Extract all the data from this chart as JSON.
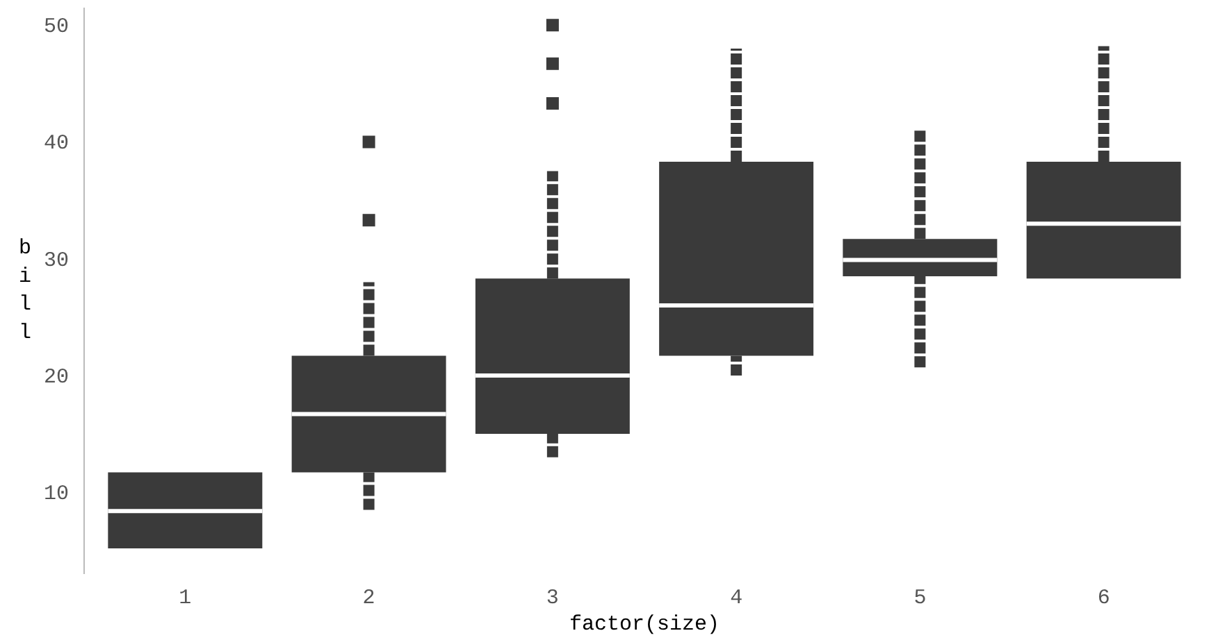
{
  "chart_data": {
    "type": "box",
    "xlabel": "factor(size)",
    "ylabel": "bill",
    "categories": [
      "1",
      "2",
      "3",
      "4",
      "5",
      "6"
    ],
    "boxes": [
      {
        "low": 5.2,
        "q1": 5.2,
        "median": 8.4,
        "q3": 11.7,
        "high": 11.7
      },
      {
        "low": 8.5,
        "q1": 11.7,
        "median": 16.7,
        "q3": 21.7,
        "high": 28,
        "outliers": [
          33.3,
          40
        ]
      },
      {
        "low": 13,
        "q1": 15,
        "median": 20,
        "q3": 28.3,
        "high": 37.5,
        "outliers": [
          43.3,
          46.7,
          50
        ]
      },
      {
        "low": 20,
        "q1": 21.7,
        "median": 26,
        "q3": 38.3,
        "high": 48
      },
      {
        "low": 20.7,
        "q1": 28.5,
        "median": 29.9,
        "q3": 31.7,
        "high": 41.2
      },
      {
        "low": 28.3,
        "q1": 28.3,
        "median": 33,
        "q3": 38.3,
        "high": 48.2
      }
    ],
    "color": "#3a3a3a",
    "ylim": [
      3,
      51.5
    ],
    "yticks": [
      10,
      20,
      30,
      40,
      50
    ],
    "grid": false
  }
}
